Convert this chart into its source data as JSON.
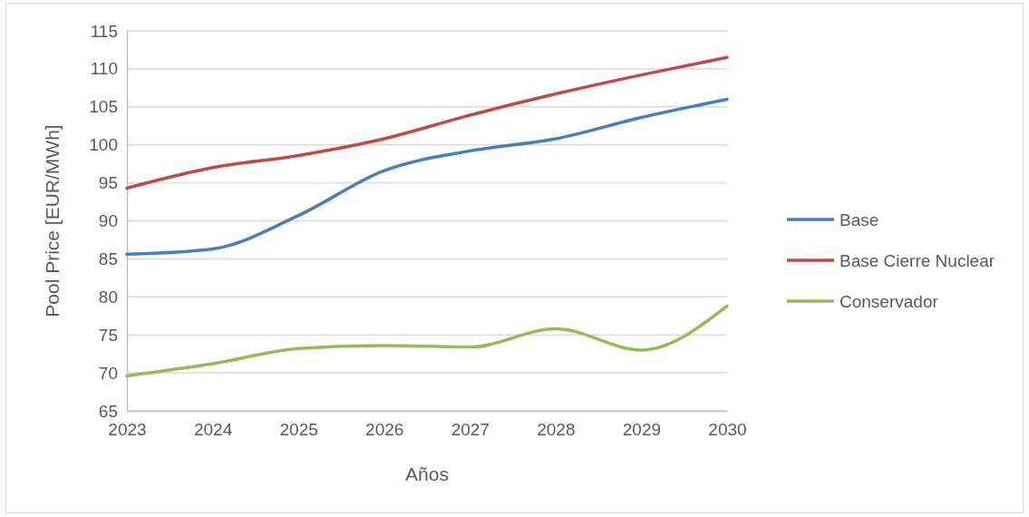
{
  "chart_data": {
    "type": "line",
    "xlabel": "Años",
    "ylabel": "Pool Price [EUR/MWh]",
    "x": [
      2023,
      2024,
      2025,
      2026,
      2027,
      2028,
      2029,
      2030
    ],
    "xlim": [
      2023,
      2030
    ],
    "xticks": [
      2023,
      2024,
      2025,
      2026,
      2027,
      2028,
      2029,
      2030
    ],
    "ylim": [
      65,
      115
    ],
    "yticks": [
      65,
      70,
      75,
      80,
      85,
      90,
      95,
      100,
      105,
      110,
      115
    ],
    "grid": "y",
    "legend": "right",
    "marker": "none",
    "line_style": "solid",
    "series": [
      {
        "name": "Base",
        "color": "#4a7ebb",
        "values": [
          85.6,
          86.3,
          90.7,
          96.6,
          99.2,
          100.8,
          103.6,
          106.0
        ]
      },
      {
        "name": "Base Cierre Nuclear",
        "color": "#be4b48",
        "values": [
          94.3,
          97.0,
          98.6,
          100.8,
          103.9,
          106.7,
          109.2,
          111.5
        ]
      },
      {
        "name": "Conservador",
        "color": "#98b954",
        "values": [
          69.6,
          71.2,
          73.2,
          73.6,
          73.4,
          75.8,
          73.0,
          78.8
        ]
      }
    ]
  }
}
